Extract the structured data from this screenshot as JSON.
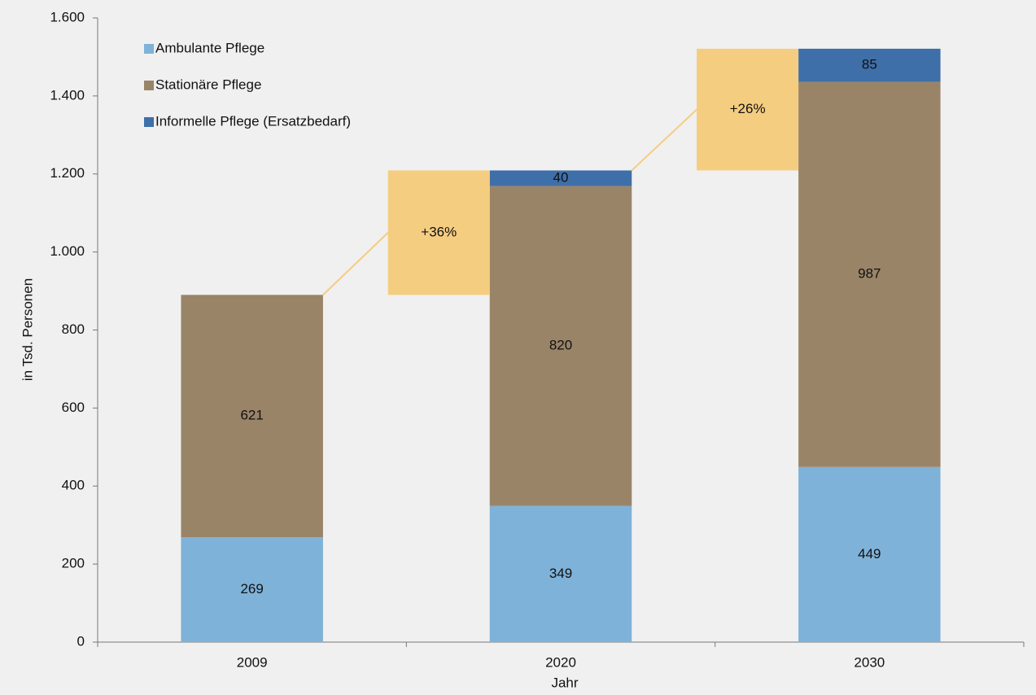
{
  "chart_data": {
    "type": "stacked_bar",
    "y_label": "in Tsd. Personen",
    "x_label": "Jahr",
    "categories": [
      "2009",
      "2020",
      "2030"
    ],
    "series": [
      {
        "name": "Ambulante Pflege",
        "color": "#7fb2d8",
        "values": [
          269,
          349,
          449
        ]
      },
      {
        "name": "Stationäre Pflege",
        "color": "#9a8468",
        "values": [
          621,
          820,
          987
        ]
      },
      {
        "name": "Informelle Pflege (Ersatzbedarf)",
        "color": "#3f6fa8",
        "values": [
          null,
          40,
          85
        ]
      }
    ],
    "annotations": [
      "+36%",
      "+26%"
    ],
    "annotation_color": "#f5cd80",
    "ylim": [
      0,
      1600
    ],
    "yticks": [
      0,
      200,
      400,
      600,
      800,
      {
        "value": 1000,
        "label": "1.000"
      },
      {
        "value": 1200,
        "label": "1.200"
      },
      {
        "value": 1400,
        "label": "1.400"
      },
      {
        "value": 1600,
        "label": "1.600"
      }
    ],
    "legend": "top-left"
  }
}
